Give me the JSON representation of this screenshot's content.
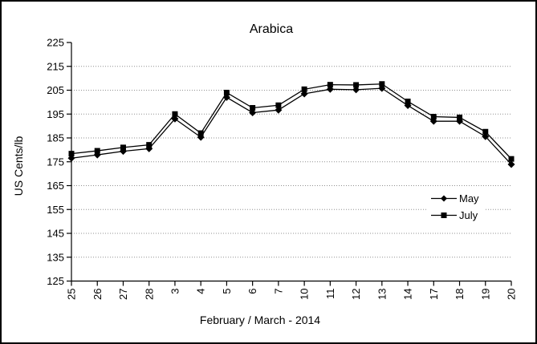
{
  "window": {
    "background": "#ffffff",
    "border_color": "#000000"
  },
  "chart_data": {
    "type": "line",
    "title": "Arabica",
    "xlabel": "February / March  - 2014",
    "ylabel": "US  Cents/lb",
    "ylim": [
      125,
      225
    ],
    "y_ticks": [
      225,
      215,
      205,
      195,
      185,
      175,
      165,
      155,
      145,
      135,
      125
    ],
    "grid": "dotted horizontal gridlines, none at 225 or 125",
    "legend_position": "inside right, white fill, no border",
    "line_color": "#000000",
    "gridline_color": "#909090",
    "categories": [
      "25",
      "26",
      "27",
      "28",
      "3",
      "4",
      "5",
      "6",
      "7",
      "10",
      "11",
      "12",
      "13",
      "14",
      "17",
      "18",
      "19",
      "20"
    ],
    "series": [
      {
        "name": "May",
        "marker": "diamond",
        "color": "#000000",
        "values": [
          176.5,
          177.9,
          179.4,
          180.5,
          193.0,
          185.3,
          202.0,
          195.6,
          196.7,
          203.5,
          205.4,
          205.2,
          205.8,
          198.6,
          192.0,
          192.0,
          185.6,
          173.9
        ]
      },
      {
        "name": "July",
        "marker": "square",
        "color": "#000000",
        "values": [
          178.4,
          179.6,
          181.0,
          182.1,
          195.0,
          187.0,
          204.0,
          197.6,
          198.7,
          205.4,
          207.3,
          207.2,
          207.6,
          200.3,
          193.9,
          193.6,
          187.6,
          176.2
        ]
      }
    ]
  }
}
